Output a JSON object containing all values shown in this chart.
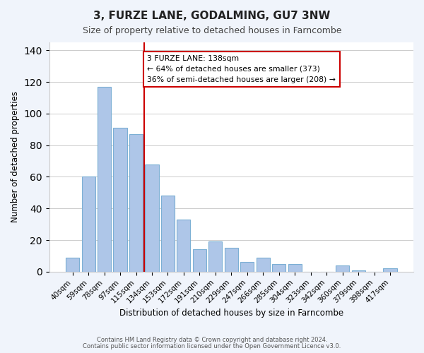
{
  "title": "3, FURZE LANE, GODALMING, GU7 3NW",
  "subtitle": "Size of property relative to detached houses in Farncombe",
  "xlabel": "Distribution of detached houses by size in Farncombe",
  "ylabel": "Number of detached properties",
  "bin_labels": [
    "40sqm",
    "59sqm",
    "78sqm",
    "97sqm",
    "115sqm",
    "134sqm",
    "153sqm",
    "172sqm",
    "191sqm",
    "210sqm",
    "229sqm",
    "247sqm",
    "266sqm",
    "285sqm",
    "304sqm",
    "323sqm",
    "342sqm",
    "360sqm",
    "379sqm",
    "398sqm",
    "417sqm"
  ],
  "bar_values": [
    9,
    60,
    117,
    91,
    87,
    68,
    48,
    33,
    14,
    19,
    15,
    6,
    9,
    5,
    5,
    0,
    0,
    4,
    1,
    0,
    2
  ],
  "bar_color": "#aec6e8",
  "bar_edge_color": "#7bafd4",
  "vline_x": 4.5,
  "vline_color": "#cc0000",
  "annotation_text": "3 FURZE LANE: 138sqm\n← 64% of detached houses are smaller (373)\n36% of semi-detached houses are larger (208) →",
  "annotation_box_color": "#ffffff",
  "annotation_box_edge": "#cc0000",
  "ylim": [
    0,
    145
  ],
  "footer1": "Contains HM Land Registry data © Crown copyright and database right 2024.",
  "footer2": "Contains public sector information licensed under the Open Government Licence v3.0.",
  "background_color": "#f0f4fb",
  "plot_background_color": "#ffffff"
}
